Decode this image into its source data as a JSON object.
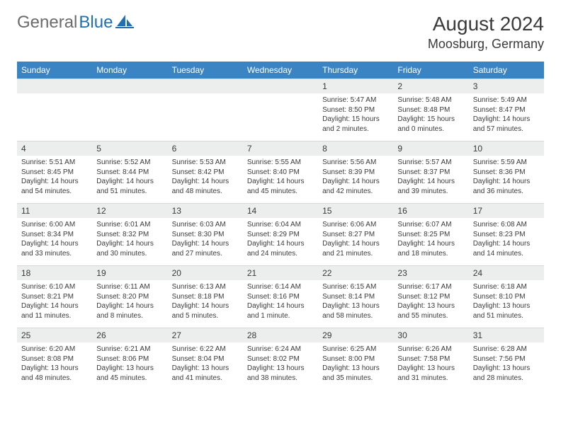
{
  "logo": {
    "general": "General",
    "blue": "Blue"
  },
  "header": {
    "month_title": "August 2024",
    "location": "Moosburg, Germany"
  },
  "weekdays": [
    "Sunday",
    "Monday",
    "Tuesday",
    "Wednesday",
    "Thursday",
    "Friday",
    "Saturday"
  ],
  "styling": {
    "header_bg": "#3b84c4",
    "header_text": "#ffffff",
    "daynum_bg": "#eceded",
    "body_text": "#3a3a3a",
    "page_bg": "#ffffff",
    "month_title_fontsize": 28,
    "location_fontsize": 18,
    "weekday_fontsize": 12,
    "daynum_fontsize": 12,
    "cell_fontsize": 10,
    "logo_general_color": "#6b6b6b",
    "logo_blue_color": "#1f6fb2",
    "logo_sail_color": "#1f6fb2"
  },
  "grid": {
    "cols": 7,
    "rows": 5,
    "leading_blanks": 4
  },
  "days": [
    {
      "n": 1,
      "sunrise": "5:47 AM",
      "sunset": "8:50 PM",
      "daylight": "15 hours and 2 minutes."
    },
    {
      "n": 2,
      "sunrise": "5:48 AM",
      "sunset": "8:48 PM",
      "daylight": "15 hours and 0 minutes."
    },
    {
      "n": 3,
      "sunrise": "5:49 AM",
      "sunset": "8:47 PM",
      "daylight": "14 hours and 57 minutes."
    },
    {
      "n": 4,
      "sunrise": "5:51 AM",
      "sunset": "8:45 PM",
      "daylight": "14 hours and 54 minutes."
    },
    {
      "n": 5,
      "sunrise": "5:52 AM",
      "sunset": "8:44 PM",
      "daylight": "14 hours and 51 minutes."
    },
    {
      "n": 6,
      "sunrise": "5:53 AM",
      "sunset": "8:42 PM",
      "daylight": "14 hours and 48 minutes."
    },
    {
      "n": 7,
      "sunrise": "5:55 AM",
      "sunset": "8:40 PM",
      "daylight": "14 hours and 45 minutes."
    },
    {
      "n": 8,
      "sunrise": "5:56 AM",
      "sunset": "8:39 PM",
      "daylight": "14 hours and 42 minutes."
    },
    {
      "n": 9,
      "sunrise": "5:57 AM",
      "sunset": "8:37 PM",
      "daylight": "14 hours and 39 minutes."
    },
    {
      "n": 10,
      "sunrise": "5:59 AM",
      "sunset": "8:36 PM",
      "daylight": "14 hours and 36 minutes."
    },
    {
      "n": 11,
      "sunrise": "6:00 AM",
      "sunset": "8:34 PM",
      "daylight": "14 hours and 33 minutes."
    },
    {
      "n": 12,
      "sunrise": "6:01 AM",
      "sunset": "8:32 PM",
      "daylight": "14 hours and 30 minutes."
    },
    {
      "n": 13,
      "sunrise": "6:03 AM",
      "sunset": "8:30 PM",
      "daylight": "14 hours and 27 minutes."
    },
    {
      "n": 14,
      "sunrise": "6:04 AM",
      "sunset": "8:29 PM",
      "daylight": "14 hours and 24 minutes."
    },
    {
      "n": 15,
      "sunrise": "6:06 AM",
      "sunset": "8:27 PM",
      "daylight": "14 hours and 21 minutes."
    },
    {
      "n": 16,
      "sunrise": "6:07 AM",
      "sunset": "8:25 PM",
      "daylight": "14 hours and 18 minutes."
    },
    {
      "n": 17,
      "sunrise": "6:08 AM",
      "sunset": "8:23 PM",
      "daylight": "14 hours and 14 minutes."
    },
    {
      "n": 18,
      "sunrise": "6:10 AM",
      "sunset": "8:21 PM",
      "daylight": "14 hours and 11 minutes."
    },
    {
      "n": 19,
      "sunrise": "6:11 AM",
      "sunset": "8:20 PM",
      "daylight": "14 hours and 8 minutes."
    },
    {
      "n": 20,
      "sunrise": "6:13 AM",
      "sunset": "8:18 PM",
      "daylight": "14 hours and 5 minutes."
    },
    {
      "n": 21,
      "sunrise": "6:14 AM",
      "sunset": "8:16 PM",
      "daylight": "14 hours and 1 minute."
    },
    {
      "n": 22,
      "sunrise": "6:15 AM",
      "sunset": "8:14 PM",
      "daylight": "13 hours and 58 minutes."
    },
    {
      "n": 23,
      "sunrise": "6:17 AM",
      "sunset": "8:12 PM",
      "daylight": "13 hours and 55 minutes."
    },
    {
      "n": 24,
      "sunrise": "6:18 AM",
      "sunset": "8:10 PM",
      "daylight": "13 hours and 51 minutes."
    },
    {
      "n": 25,
      "sunrise": "6:20 AM",
      "sunset": "8:08 PM",
      "daylight": "13 hours and 48 minutes."
    },
    {
      "n": 26,
      "sunrise": "6:21 AM",
      "sunset": "8:06 PM",
      "daylight": "13 hours and 45 minutes."
    },
    {
      "n": 27,
      "sunrise": "6:22 AM",
      "sunset": "8:04 PM",
      "daylight": "13 hours and 41 minutes."
    },
    {
      "n": 28,
      "sunrise": "6:24 AM",
      "sunset": "8:02 PM",
      "daylight": "13 hours and 38 minutes."
    },
    {
      "n": 29,
      "sunrise": "6:25 AM",
      "sunset": "8:00 PM",
      "daylight": "13 hours and 35 minutes."
    },
    {
      "n": 30,
      "sunrise": "6:26 AM",
      "sunset": "7:58 PM",
      "daylight": "13 hours and 31 minutes."
    },
    {
      "n": 31,
      "sunrise": "6:28 AM",
      "sunset": "7:56 PM",
      "daylight": "13 hours and 28 minutes."
    }
  ],
  "labels": {
    "sunrise": "Sunrise:",
    "sunset": "Sunset:",
    "daylight": "Daylight:"
  }
}
